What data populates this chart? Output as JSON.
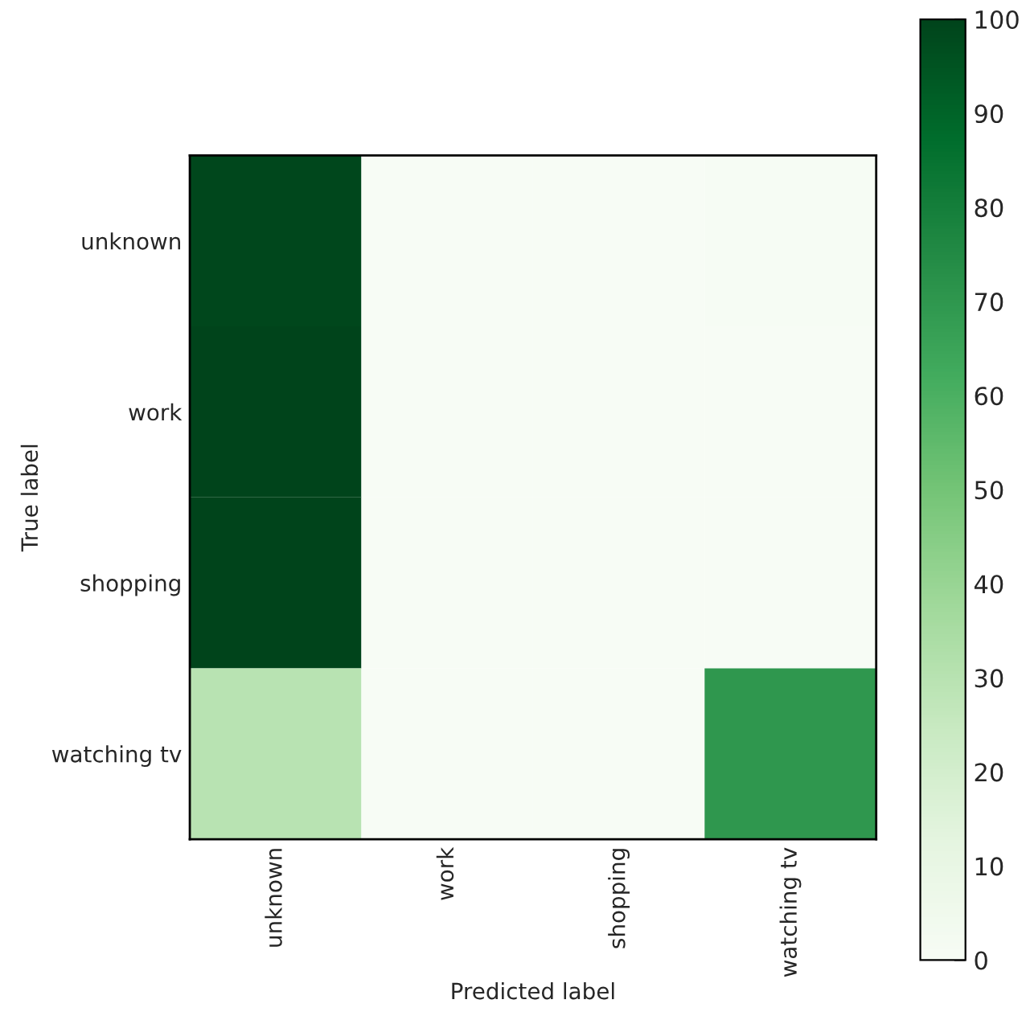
{
  "chart_data": {
    "type": "heatmap",
    "xlabel": "Predicted label",
    "ylabel": "True label",
    "categories": [
      "unknown",
      "work",
      "shopping",
      "watching tv"
    ],
    "y_categories": [
      "unknown",
      "work",
      "shopping",
      "watching tv"
    ],
    "cells": [
      [
        99,
        0,
        0,
        1
      ],
      [
        100,
        0,
        0,
        0
      ],
      [
        100,
        0,
        0,
        0
      ],
      [
        30,
        0,
        0,
        70
      ]
    ],
    "clim": [
      0,
      100
    ],
    "cticks": [
      0,
      10,
      20,
      30,
      40,
      50,
      60,
      70,
      80,
      90,
      100
    ]
  }
}
